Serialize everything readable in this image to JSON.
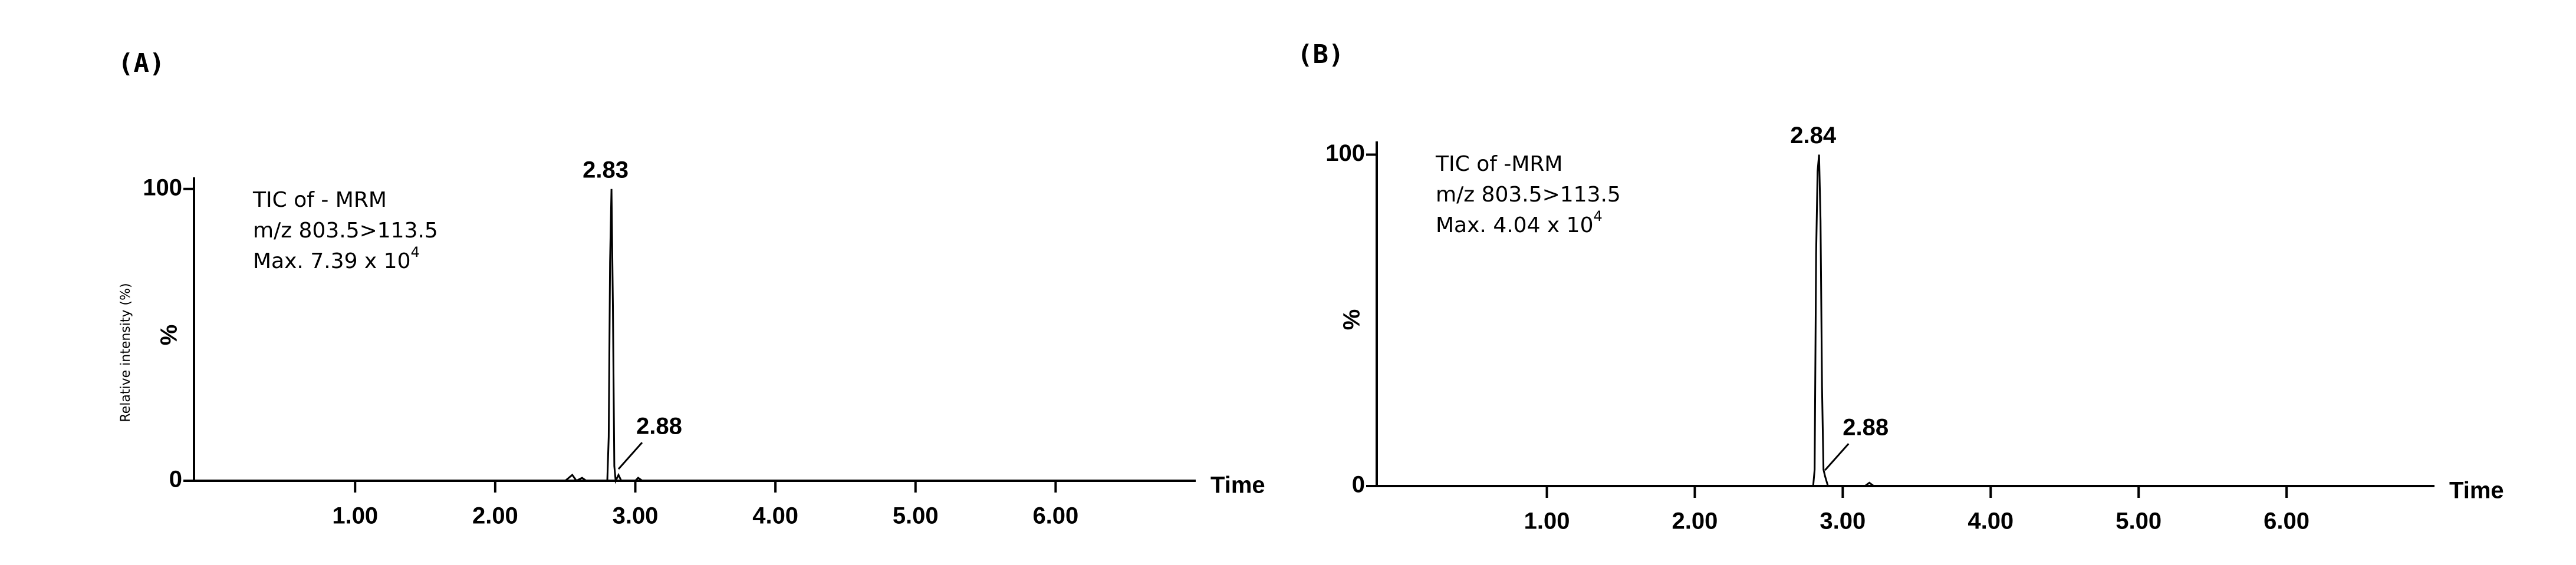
{
  "chart_data": [
    {
      "type": "line",
      "panel_label": "(A)",
      "annotation": [
        "TIC of - MRM",
        "m/z 803.5>113.5",
        "Max. 7.39 x 10"
      ],
      "annotation_superscript": "4",
      "ylabel": "%",
      "ylabel_side": "Relative intensity (%)",
      "xlabel": "Time",
      "x": [
        -0.15,
        2.5,
        2.55,
        2.58,
        2.62,
        2.65,
        2.8,
        2.81,
        2.82,
        2.83,
        2.84,
        2.85,
        2.86,
        2.88,
        2.9,
        3.0,
        3.02,
        3.05,
        7.0
      ],
      "values": [
        0,
        0,
        2,
        0,
        1,
        0,
        0,
        15,
        75,
        100,
        60,
        5,
        0,
        2,
        0,
        0,
        1,
        0,
        0
      ],
      "color": "#000000",
      "peaks": [
        {
          "x": 2.83,
          "y": 100
        },
        {
          "x": 2.88,
          "y": 2
        }
      ],
      "xlim": [
        -0.15,
        7.0
      ],
      "ylim": [
        0,
        104
      ],
      "xticks": [
        {
          "value": 1,
          "label": "1.00"
        },
        {
          "value": 2,
          "label": "2.00"
        },
        {
          "value": 3,
          "label": "3.00"
        },
        {
          "value": 4,
          "label": "4.00"
        },
        {
          "value": 5,
          "label": "5.00"
        },
        {
          "value": 6,
          "label": "6.00"
        }
      ],
      "yticks": [
        0,
        100
      ]
    },
    {
      "type": "line",
      "panel_label": "(B)",
      "annotation": [
        "TIC of -MRM",
        "m/z 803.5>113.5",
        "Max. 4.04 x 10"
      ],
      "annotation_superscript": "4",
      "ylabel": "%",
      "xlabel": "Time",
      "x": [
        -0.15,
        2.8,
        2.81,
        2.82,
        2.83,
        2.84,
        2.85,
        2.86,
        2.87,
        2.88,
        2.9,
        3.15,
        3.18,
        3.21,
        7.0
      ],
      "values": [
        0,
        0,
        5,
        70,
        95,
        100,
        80,
        30,
        5,
        3,
        0,
        0,
        1,
        0,
        0
      ],
      "color": "#000000",
      "peaks": [
        {
          "x": 2.84,
          "y": 100
        },
        {
          "x": 2.88,
          "y": 3
        }
      ],
      "xlim": [
        -0.15,
        7.0
      ],
      "ylim": [
        0,
        104
      ],
      "xticks": [
        {
          "value": 1,
          "label": "1.00"
        },
        {
          "value": 2,
          "label": "2.00"
        },
        {
          "value": 3,
          "label": "3.00"
        },
        {
          "value": 4,
          "label": "4.00"
        },
        {
          "value": 5,
          "label": "5.00"
        },
        {
          "value": 6,
          "label": "6.00"
        }
      ],
      "yticks": [
        0,
        100
      ]
    }
  ]
}
